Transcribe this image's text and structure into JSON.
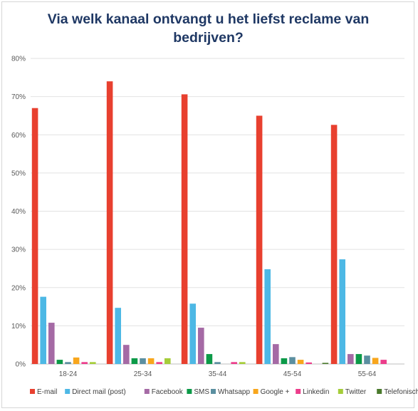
{
  "chart_data": {
    "type": "bar",
    "title": "Via welk kanaal ontvangt u het liefst reclame van bedrijven?",
    "categories": [
      "18-24",
      "25-34",
      "35-44",
      "45-54",
      "55-64"
    ],
    "ylim": [
      0,
      80
    ],
    "yticks": [
      0,
      10,
      20,
      30,
      40,
      50,
      60,
      70,
      80
    ],
    "ytick_labels": [
      "0%",
      "10%",
      "20%",
      "30%",
      "40%",
      "50%",
      "60%",
      "70%",
      "80%"
    ],
    "grid": true,
    "legend_position": "bottom",
    "series": [
      {
        "name": "E-mail",
        "color": "#e8402f",
        "values": [
          67,
          74,
          70.6,
          65,
          62.6
        ]
      },
      {
        "name": "Direct mail (post)",
        "color": "#4db8e5",
        "values": [
          17.6,
          14.7,
          15.8,
          24.8,
          27.4
        ]
      },
      {
        "name": "Facebook",
        "color": "#a56aa5",
        "values": [
          10.8,
          5,
          9.5,
          5.2,
          2.6
        ]
      },
      {
        "name": "SMS",
        "color": "#0c9a48",
        "values": [
          1.1,
          1.5,
          2.6,
          1.5,
          2.6
        ]
      },
      {
        "name": "Whatsapp",
        "color": "#5b8fa0",
        "values": [
          0.5,
          1.5,
          0.5,
          1.8,
          2.2
        ]
      },
      {
        "name": "Google +",
        "color": "#f8a61c",
        "values": [
          1.7,
          1.5,
          0,
          1.1,
          1.6
        ]
      },
      {
        "name": "Linkedin",
        "color": "#ec3d8b",
        "values": [
          0.5,
          0.5,
          0.5,
          0.4,
          1.1
        ]
      },
      {
        "name": "Twitter",
        "color": "#a5cd39",
        "values": [
          0.5,
          1.5,
          0.5,
          0,
          0
        ]
      },
      {
        "name": "Telefonisch",
        "color": "#4a7a2c",
        "values": [
          0,
          0,
          0,
          0.3,
          0
        ]
      }
    ]
  }
}
